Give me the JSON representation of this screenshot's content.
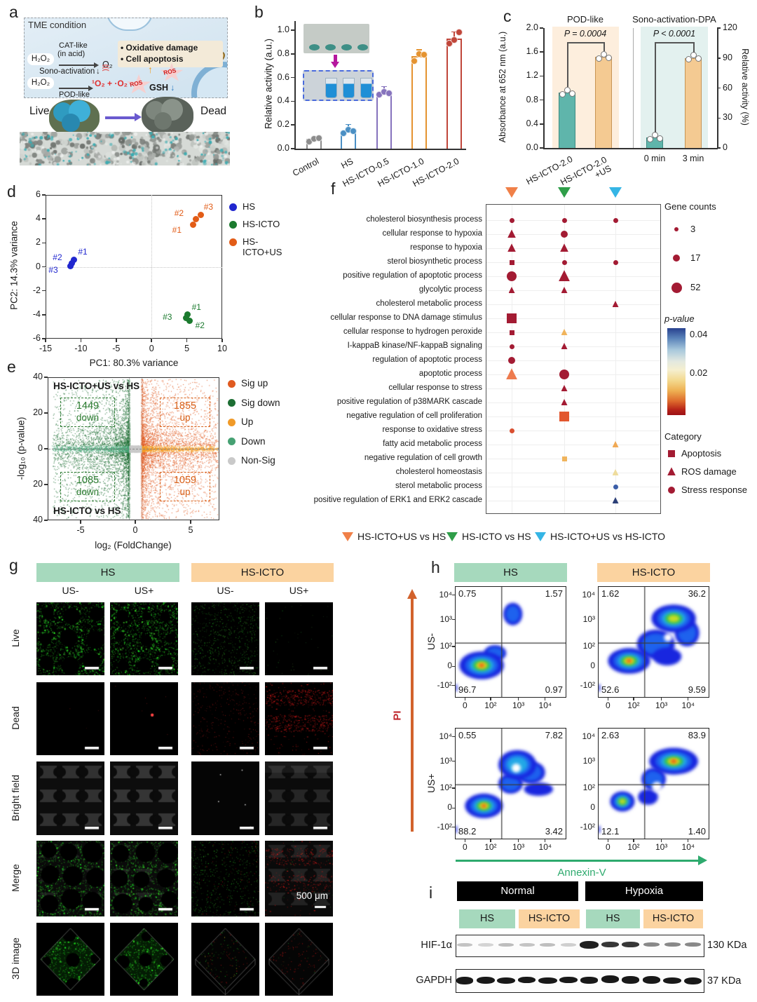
{
  "letters": {
    "a": "a",
    "b": "b",
    "c": "c",
    "d": "d",
    "e": "e",
    "f": "f",
    "g": "g",
    "h": "h",
    "i": "i"
  },
  "panel_a": {
    "box_title": "TME condition",
    "h2o2_top": "H₂O₂",
    "cat_like": "CAT-like",
    "in_acid": "(in acid)",
    "o2": "O₂",
    "bullet_oxidative": "•  Oxidative damage",
    "bullet_apoptosis": "•  Cell apoptosis",
    "sono_activation": "Sono-activation",
    "sono_icon": ")))",
    "h2o2_bottom": "H₂O₂",
    "pod_like": "POD-like",
    "ros_products": "¹O₂ + ·O₂⁻",
    "ros": "ROS",
    "gsh": "GSH",
    "up_arrow": "↑",
    "down_arrow": "↓",
    "live": "Live",
    "dead": "Dead"
  },
  "chart_data": [
    {
      "id": "b",
      "type": "bar",
      "ylabel": "Relative activity (a.u.)",
      "ylim": [
        0,
        1.0
      ],
      "yticks": [
        "0.0",
        "0.2",
        "0.4",
        "0.6",
        "0.8",
        "1.0"
      ],
      "categories": [
        "Control",
        "HS",
        "HS-ICTO-0.5",
        "HS-ICTO-1.0",
        "HS-ICTO-2.0"
      ],
      "values": [
        0.08,
        0.15,
        0.47,
        0.78,
        0.93
      ],
      "points": [
        [
          0.06,
          0.08,
          0.09
        ],
        [
          0.13,
          0.16,
          0.15
        ],
        [
          0.455,
          0.48,
          0.47
        ],
        [
          0.74,
          0.8,
          0.79
        ],
        [
          0.89,
          0.92,
          0.98
        ]
      ],
      "bar_colors": [
        "#8c8c8c",
        "#4a8fc4",
        "#8673bd",
        "#e59330",
        "#c0463a"
      ]
    },
    {
      "id": "c",
      "type": "bar",
      "group_titles": [
        "POD-like",
        "Sono-activation-DPA"
      ],
      "p_labels": [
        "P = 0.0004",
        "P < 0.0001"
      ],
      "ylabel_left": "Absorbance at 652 nm (a.u.)",
      "ylabel_right": "Relative activity (%)",
      "yticks_left": [
        "0.0",
        "0.4",
        "0.8",
        "1.2",
        "1.6",
        "2.0"
      ],
      "yticks_right": [
        "0",
        "30",
        "60",
        "90",
        "120"
      ],
      "ylim_left": [
        0,
        2.0
      ],
      "ylim_right": [
        0,
        120
      ],
      "categories": [
        "HS-ICTO-2.0",
        [
          "HS-ICTO-2.0",
          "+US"
        ],
        "0 min",
        "3 min"
      ],
      "values": [
        0.92,
        1.52,
        0.17,
        1.5
      ],
      "bar_fill": [
        "#5fb5ab",
        "#f4ca92",
        "#5fb5ab",
        "#f4ca92"
      ],
      "bar_edge": [
        "#3d8c83",
        "#c79555",
        "#3d8c83",
        "#c79555"
      ],
      "group_bg": [
        "#fdeedd",
        "#e3f1ef"
      ]
    },
    {
      "id": "d",
      "type": "scatter",
      "xlabel": "PC1: 80.3% variance",
      "ylabel": "PC2: 14.3% variance",
      "xlim": [
        -15,
        10
      ],
      "ylim": [
        -6,
        6
      ],
      "xticks": [
        -15,
        -10,
        -5,
        0,
        5,
        10
      ],
      "yticks": [
        -6,
        -4,
        -2,
        0,
        2,
        4,
        6
      ],
      "series": [
        {
          "name": "HS",
          "color": "#2127cf",
          "points": [
            {
              "label": "#1",
              "x": -11.0,
              "y": 0.6
            },
            {
              "label": "#2",
              "x": -11.3,
              "y": 0.3
            },
            {
              "label": "#3",
              "x": -11.5,
              "y": 0.05
            }
          ]
        },
        {
          "name": "HS-ICTO",
          "color": "#1b7a2e",
          "points": [
            {
              "label": "#1",
              "x": 5.1,
              "y": -4.0
            },
            {
              "label": "#2",
              "x": 5.4,
              "y": -4.5
            },
            {
              "label": "#3",
              "x": 4.85,
              "y": -4.3
            }
          ]
        },
        {
          "name": "HS-ICTO+US",
          "color": "#e25c17",
          "points": [
            {
              "label": "#1",
              "x": 5.9,
              "y": 3.5
            },
            {
              "label": "#2",
              "x": 6.3,
              "y": 4.0
            },
            {
              "label": "#3",
              "x": 7.0,
              "y": 4.35
            }
          ]
        }
      ]
    },
    {
      "id": "e",
      "type": "volcano",
      "xlabel": "log₂ (FoldChange)",
      "ylabel": "-log₁₀ (p-value)",
      "xticks": [
        "-5",
        "0",
        "5"
      ],
      "yticks": [
        "40",
        "20",
        "0",
        "20",
        "40"
      ],
      "top_comparison": "HS-ICTO+US vs HS",
      "bottom_comparison": "HS-ICTO vs HS",
      "counts": {
        "top_down": "1449",
        "top_down_word": "down",
        "top_up": "1855",
        "top_up_word": "up",
        "bottom_down": "1085",
        "bottom_down_word": "down",
        "bottom_up": "1059",
        "bottom_up_word": "up"
      },
      "legend": [
        {
          "label": "Sig up",
          "color": "#e05a20"
        },
        {
          "label": "Sig down",
          "color": "#1d6e33"
        },
        {
          "label": "Up",
          "color": "#f09a28"
        },
        {
          "label": "Down",
          "color": "#46a173"
        },
        {
          "label": "Non-Sig",
          "color": "#c9c9c9"
        }
      ]
    },
    {
      "id": "f",
      "type": "dot-matrix",
      "columns": [
        {
          "name": "HS-ICTO+US vs HS",
          "color": "#f08048"
        },
        {
          "name": "HS-ICTO vs HS",
          "color": "#2f9e49"
        },
        {
          "name": "HS-ICTO+US vs HS-ICTO",
          "color": "#35b5e5"
        }
      ],
      "terms": [
        "cholesterol biosynthesis process",
        "cellular response to hypoxia",
        "response to hypoxia",
        "sterol biosynthetic process",
        "positive regulation of apoptotic process",
        "glycolytic process",
        "cholesterol metabolic process",
        "cellular response to DNA damage stimulus",
        "cellular response to hydrogen peroxide",
        "I-kappaB kinase/NF-kappaB signaling",
        "regulation of apoptotic process",
        "apoptotic process",
        "cellular response to stress",
        "positive regulation of p38MARK cascade",
        "negative regulation of cell proliferation",
        "response to oxidative stress",
        "fatty acid metabolic process",
        "negative regulation of cell growth",
        "cholesterol homeostasis",
        "sterol metabolic process",
        "positive regulation of ERK1 and ERK2 cascade"
      ],
      "markers": [
        {
          "row": 0,
          "col": 0,
          "shape": "circle",
          "size": "s",
          "color": "#a31b33"
        },
        {
          "row": 0,
          "col": 1,
          "shape": "circle",
          "size": "s",
          "color": "#a31b33"
        },
        {
          "row": 0,
          "col": 2,
          "shape": "circle",
          "size": "s",
          "color": "#a31b33"
        },
        {
          "row": 1,
          "col": 0,
          "shape": "triangle",
          "size": "m",
          "color": "#a31b33"
        },
        {
          "row": 1,
          "col": 1,
          "shape": "circle",
          "size": "m",
          "color": "#a31b33"
        },
        {
          "row": 2,
          "col": 0,
          "shape": "triangle",
          "size": "m",
          "color": "#a31b33"
        },
        {
          "row": 2,
          "col": 1,
          "shape": "triangle",
          "size": "m",
          "color": "#a31b33"
        },
        {
          "row": 3,
          "col": 0,
          "shape": "square",
          "size": "s",
          "color": "#a31b33"
        },
        {
          "row": 3,
          "col": 1,
          "shape": "circle",
          "size": "s",
          "color": "#a31b33"
        },
        {
          "row": 3,
          "col": 2,
          "shape": "circle",
          "size": "s",
          "color": "#a31b33"
        },
        {
          "row": 4,
          "col": 0,
          "shape": "circle",
          "size": "l",
          "color": "#a31b33"
        },
        {
          "row": 4,
          "col": 1,
          "shape": "triangle",
          "size": "l",
          "color": "#a31b33"
        },
        {
          "row": 5,
          "col": 0,
          "shape": "triangle",
          "size": "s",
          "color": "#a31b33"
        },
        {
          "row": 5,
          "col": 1,
          "shape": "triangle",
          "size": "s",
          "color": "#a31b33"
        },
        {
          "row": 6,
          "col": 2,
          "shape": "triangle",
          "size": "s",
          "color": "#a31b33"
        },
        {
          "row": 7,
          "col": 0,
          "shape": "square",
          "size": "l",
          "color": "#a31b33"
        },
        {
          "row": 8,
          "col": 0,
          "shape": "square",
          "size": "s",
          "color": "#a31b33"
        },
        {
          "row": 8,
          "col": 1,
          "shape": "triangle",
          "size": "s",
          "color": "#f0b45c"
        },
        {
          "row": 9,
          "col": 0,
          "shape": "circle",
          "size": "s",
          "color": "#a31b33"
        },
        {
          "row": 9,
          "col": 1,
          "shape": "triangle",
          "size": "s",
          "color": "#a31b33"
        },
        {
          "row": 10,
          "col": 0,
          "shape": "circle",
          "size": "m",
          "color": "#a31b33"
        },
        {
          "row": 11,
          "col": 0,
          "shape": "triangle",
          "size": "l",
          "color": "#ee7b4e"
        },
        {
          "row": 11,
          "col": 1,
          "shape": "circle",
          "size": "l",
          "color": "#a31b33"
        },
        {
          "row": 12,
          "col": 1,
          "shape": "triangle",
          "size": "s",
          "color": "#a31b33"
        },
        {
          "row": 13,
          "col": 1,
          "shape": "triangle",
          "size": "s",
          "color": "#a31b33"
        },
        {
          "row": 14,
          "col": 1,
          "shape": "square",
          "size": "l",
          "color": "#e2572f"
        },
        {
          "row": 15,
          "col": 0,
          "shape": "circle",
          "size": "s",
          "color": "#d94f30"
        },
        {
          "row": 16,
          "col": 2,
          "shape": "triangle",
          "size": "s",
          "color": "#f0a954"
        },
        {
          "row": 17,
          "col": 1,
          "shape": "square",
          "size": "s",
          "color": "#f0b45c"
        },
        {
          "row": 18,
          "col": 2,
          "shape": "triangle",
          "size": "s",
          "color": "#eedc9c"
        },
        {
          "row": 19,
          "col": 2,
          "shape": "circle",
          "size": "s",
          "color": "#3b5ea8"
        },
        {
          "row": 20,
          "col": 2,
          "shape": "triangle",
          "size": "s",
          "color": "#2b3f77"
        }
      ],
      "legend": {
        "gene_counts_title": "Gene counts",
        "gene_counts": [
          "3",
          "17",
          "52"
        ],
        "pvalue_title": "p-value",
        "pvalue_hi": "0.04",
        "pvalue_lo": "0.02",
        "category_title": "Category",
        "categories": [
          {
            "shape": "square",
            "label": "Apoptosis"
          },
          {
            "shape": "triangle",
            "label": "ROS damage"
          },
          {
            "shape": "circle",
            "label": "Stress response"
          }
        ]
      }
    },
    {
      "id": "h",
      "type": "flow-density",
      "col_headers": [
        "HS",
        "HS-ICTO"
      ],
      "row_labels": [
        "US-",
        "US+"
      ],
      "xlabel": "Annexin-V",
      "ylabel": "PI",
      "yticks": [
        "10⁴",
        "10³",
        "10²",
        "0",
        "-10²"
      ],
      "xticks": [
        "0",
        "10²",
        "10³",
        "10⁴"
      ],
      "plots": [
        {
          "col": "HS",
          "row": "US-",
          "ul": "0.75",
          "ur": "1.57",
          "ll": "96.7",
          "lr": "0.97"
        },
        {
          "col": "HS-ICTO",
          "row": "US-",
          "ul": "1.62",
          "ur": "36.2",
          "ll": "52.6",
          "lr": "9.59"
        },
        {
          "col": "HS",
          "row": "US+",
          "ul": "0.55",
          "ur": "7.82",
          "ll": "88.2",
          "lr": "3.42"
        },
        {
          "col": "HS-ICTO",
          "row": "US+",
          "ul": "2.63",
          "ur": "83.9",
          "ll": "12.1",
          "lr": "1.40"
        }
      ]
    }
  ],
  "panel_g": {
    "headers": [
      {
        "label": "HS",
        "bg": "#a6d9bd"
      },
      {
        "label": "HS-ICTO",
        "bg": "#fbd3a0"
      }
    ],
    "col_labels": [
      "US-",
      "US+",
      "US-",
      "US+"
    ],
    "row_labels": [
      "Live",
      "Dead",
      "Bright field",
      "Merge",
      "3D image"
    ],
    "scale_label": "500 μm"
  },
  "panel_i": {
    "condition_bars": [
      "Normal",
      "Hypoxia"
    ],
    "group_labels": [
      {
        "label": "HS",
        "bg": "#a6d9bd"
      },
      {
        "label": "HS-ICTO",
        "bg": "#fbd3a0"
      },
      {
        "label": "HS",
        "bg": "#a6d9bd"
      },
      {
        "label": "HS-ICTO",
        "bg": "#fbd3a0"
      }
    ],
    "rows": [
      {
        "protein": "HIF-1α",
        "kda": "130 KDa"
      },
      {
        "protein": "GAPDH",
        "kda": "37 KDa"
      }
    ]
  }
}
